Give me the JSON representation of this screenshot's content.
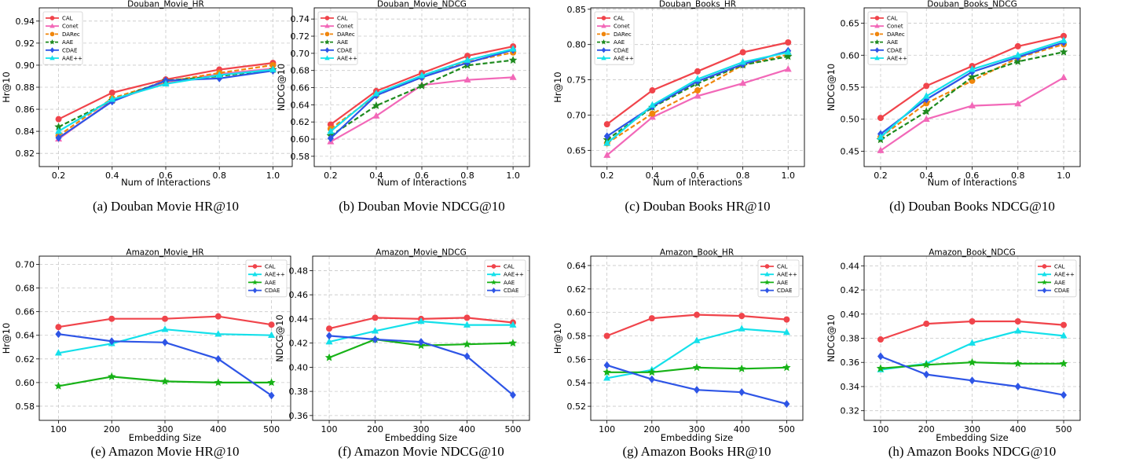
{
  "colors": {
    "CAL": "#f0444b",
    "Conet": "#f268b8",
    "DARec": "#f0860c",
    "AAE": "#1e8a1e",
    "AAE_bottom": "#17b217",
    "CDAE": "#2e55e6",
    "AAE++": "#14e0ea"
  },
  "chart_data": [
    {
      "id": "a",
      "type": "line",
      "title": "Douban_Movie_HR",
      "xlabel": "Num of Interactions",
      "ylabel": "Hr@10",
      "caption": "(a) Douban Movie HR@10",
      "x": [
        0.2,
        0.4,
        0.6,
        0.8,
        1.0
      ],
      "x_ticks": [
        "0.2",
        "0.4",
        "0.6",
        "0.8",
        "1.0"
      ],
      "ylim": [
        0.808,
        0.952
      ],
      "y_ticks": [
        0.82,
        0.84,
        0.86,
        0.88,
        0.9,
        0.92,
        0.94
      ],
      "y_tick_labels": [
        "0.82",
        "0.84",
        "0.86",
        "0.88",
        "0.90",
        "0.92",
        "0.94"
      ],
      "legend": "top-left",
      "grid": true,
      "series": [
        {
          "name": "CAL",
          "values": [
            0.851,
            0.875,
            0.887,
            0.896,
            0.902
          ]
        },
        {
          "name": "Conet",
          "values": [
            0.833,
            0.868,
            0.884,
            0.892,
            0.897
          ]
        },
        {
          "name": "DARec",
          "values": [
            0.836,
            0.87,
            0.885,
            0.893,
            0.9
          ]
        },
        {
          "name": "AAE",
          "values": [
            0.844,
            0.868,
            0.886,
            0.89,
            0.896
          ]
        },
        {
          "name": "CDAE",
          "values": [
            0.834,
            0.867,
            0.886,
            0.888,
            0.895
          ]
        },
        {
          "name": "AAE++",
          "values": [
            0.84,
            0.869,
            0.883,
            0.891,
            0.896
          ]
        }
      ]
    },
    {
      "id": "b",
      "type": "line",
      "title": "Douban_Movie_NDCG",
      "xlabel": "Num of Interactions",
      "ylabel": "NDCG@10",
      "caption": "(b) Douban Movie NDCG@10",
      "x": [
        0.2,
        0.4,
        0.6,
        0.8,
        1.0
      ],
      "x_ticks": [
        "0.2",
        "0.4",
        "0.6",
        "0.8",
        "1.0"
      ],
      "ylim": [
        0.568,
        0.753
      ],
      "y_ticks": [
        0.58,
        0.6,
        0.62,
        0.64,
        0.66,
        0.68,
        0.7,
        0.72,
        0.74
      ],
      "y_tick_labels": [
        "0.58",
        "0.60",
        "0.62",
        "0.64",
        "0.66",
        "0.68",
        "0.70",
        "0.72",
        "0.74"
      ],
      "legend": "top-left",
      "grid": true,
      "series": [
        {
          "name": "CAL",
          "values": [
            0.617,
            0.656,
            0.677,
            0.697,
            0.708
          ]
        },
        {
          "name": "Conet",
          "values": [
            0.597,
            0.627,
            0.663,
            0.669,
            0.672
          ]
        },
        {
          "name": "DARec",
          "values": [
            0.612,
            0.651,
            0.672,
            0.69,
            0.701
          ]
        },
        {
          "name": "AAE",
          "values": [
            0.604,
            0.639,
            0.662,
            0.686,
            0.692
          ]
        },
        {
          "name": "CDAE",
          "values": [
            0.601,
            0.651,
            0.672,
            0.689,
            0.704
          ]
        },
        {
          "name": "AAE++",
          "values": [
            0.609,
            0.653,
            0.674,
            0.692,
            0.705
          ]
        }
      ]
    },
    {
      "id": "c",
      "type": "line",
      "title": "Douban_Books_HR",
      "xlabel": "Num of Interactions",
      "ylabel": "Hr@10",
      "caption": "(c) Douban Books HR@10",
      "x": [
        0.2,
        0.4,
        0.6,
        0.8,
        1.0
      ],
      "x_ticks": [
        "0.2",
        "0.4",
        "0.6",
        "0.8",
        "1.0"
      ],
      "ylim": [
        0.627,
        0.852
      ],
      "y_ticks": [
        0.65,
        0.7,
        0.75,
        0.8,
        0.85
      ],
      "y_tick_labels": [
        "0.65",
        "0.70",
        "0.75",
        "0.80",
        "0.85"
      ],
      "legend": "top-left",
      "grid": true,
      "series": [
        {
          "name": "CAL",
          "values": [
            0.687,
            0.735,
            0.762,
            0.789,
            0.803
          ]
        },
        {
          "name": "Conet",
          "values": [
            0.643,
            0.697,
            0.727,
            0.745,
            0.765
          ]
        },
        {
          "name": "DARec",
          "values": [
            0.66,
            0.702,
            0.735,
            0.771,
            0.786
          ]
        },
        {
          "name": "AAE",
          "values": [
            0.665,
            0.711,
            0.745,
            0.771,
            0.783
          ]
        },
        {
          "name": "CDAE",
          "values": [
            0.67,
            0.712,
            0.748,
            0.772,
            0.791
          ]
        },
        {
          "name": "AAE++",
          "values": [
            0.66,
            0.714,
            0.751,
            0.775,
            0.789
          ]
        }
      ]
    },
    {
      "id": "d",
      "type": "line",
      "title": "Douban_Books_NDCG",
      "xlabel": "Num of Interactions",
      "ylabel": "NDCG@10",
      "caption": "(d) Douban Books NDCG@10",
      "x": [
        0.2,
        0.4,
        0.6,
        0.8,
        1.0
      ],
      "x_ticks": [
        "0.2",
        "0.4",
        "0.6",
        "0.8",
        "1.0"
      ],
      "ylim": [
        0.426,
        0.674
      ],
      "y_ticks": [
        0.45,
        0.5,
        0.55,
        0.6,
        0.65
      ],
      "y_tick_labels": [
        "0.45",
        "0.50",
        "0.55",
        "0.60",
        "0.65"
      ],
      "legend": "top-left",
      "grid": true,
      "series": [
        {
          "name": "CAL",
          "values": [
            0.502,
            0.552,
            0.583,
            0.614,
            0.63
          ]
        },
        {
          "name": "Conet",
          "values": [
            0.451,
            0.5,
            0.521,
            0.524,
            0.565
          ]
        },
        {
          "name": "DARec",
          "values": [
            0.472,
            0.525,
            0.56,
            0.596,
            0.617
          ]
        },
        {
          "name": "AAE",
          "values": [
            0.468,
            0.512,
            0.566,
            0.59,
            0.605
          ]
        },
        {
          "name": "CDAE",
          "values": [
            0.477,
            0.531,
            0.574,
            0.597,
            0.62
          ]
        },
        {
          "name": "AAE++",
          "values": [
            0.472,
            0.536,
            0.578,
            0.6,
            0.623
          ]
        }
      ]
    },
    {
      "id": "e",
      "type": "line",
      "title": "Amazon_Movie_HR",
      "xlabel": "Embedding Size",
      "ylabel": "Hr@10",
      "caption": "(e) Amazon Movie HR@10",
      "x": [
        100,
        200,
        300,
        400,
        500
      ],
      "x_ticks": [
        "100",
        "200",
        "300",
        "400",
        "500"
      ],
      "ylim": [
        0.568,
        0.707
      ],
      "y_ticks": [
        0.58,
        0.6,
        0.62,
        0.64,
        0.66,
        0.68,
        0.7
      ],
      "y_tick_labels": [
        "0.58",
        "0.60",
        "0.62",
        "0.64",
        "0.66",
        "0.68",
        "0.70"
      ],
      "legend": "top-right",
      "grid": true,
      "series": [
        {
          "name": "CAL",
          "values": [
            0.647,
            0.654,
            0.654,
            0.656,
            0.649
          ]
        },
        {
          "name": "AAE++",
          "values": [
            0.625,
            0.633,
            0.645,
            0.641,
            0.64
          ]
        },
        {
          "name": "AAE",
          "values": [
            0.597,
            0.605,
            0.601,
            0.6,
            0.6
          ]
        },
        {
          "name": "CDAE",
          "values": [
            0.641,
            0.635,
            0.634,
            0.62,
            0.589
          ]
        }
      ]
    },
    {
      "id": "f",
      "type": "line",
      "title": "Amazon_Movie_NDCG",
      "xlabel": "Embedding Size",
      "ylabel": "NDCG@10",
      "caption": "(f) Amazon Movie NDCG@10",
      "x": [
        100,
        200,
        300,
        400,
        500
      ],
      "x_ticks": [
        "100",
        "200",
        "300",
        "400",
        "500"
      ],
      "ylim": [
        0.356,
        0.492
      ],
      "y_ticks": [
        0.36,
        0.38,
        0.4,
        0.42,
        0.44,
        0.46,
        0.48
      ],
      "y_tick_labels": [
        "0.36",
        "0.38",
        "0.40",
        "0.42",
        "0.44",
        "0.46",
        "0.48"
      ],
      "legend": "top-right",
      "grid": true,
      "series": [
        {
          "name": "CAL",
          "values": [
            0.432,
            0.441,
            0.44,
            0.441,
            0.437
          ]
        },
        {
          "name": "AAE++",
          "values": [
            0.421,
            0.43,
            0.438,
            0.435,
            0.435
          ]
        },
        {
          "name": "AAE",
          "values": [
            0.408,
            0.423,
            0.418,
            0.419,
            0.42
          ]
        },
        {
          "name": "CDAE",
          "values": [
            0.426,
            0.423,
            0.421,
            0.409,
            0.377
          ]
        }
      ]
    },
    {
      "id": "g",
      "type": "line",
      "title": "Amazon_Book_HR",
      "xlabel": "Embedding Size",
      "ylabel": "Hr@10",
      "caption": "(g) Amazon Books HR@10",
      "x": [
        100,
        200,
        300,
        400,
        500
      ],
      "x_ticks": [
        "100",
        "200",
        "300",
        "400",
        "500"
      ],
      "ylim": [
        0.508,
        0.648
      ],
      "y_ticks": [
        0.52,
        0.54,
        0.56,
        0.58,
        0.6,
        0.62,
        0.64
      ],
      "y_tick_labels": [
        "0.52",
        "0.54",
        "0.56",
        "0.58",
        "0.60",
        "0.62",
        "0.64"
      ],
      "legend": "top-right",
      "grid": true,
      "series": [
        {
          "name": "CAL",
          "values": [
            0.58,
            0.595,
            0.598,
            0.597,
            0.594
          ]
        },
        {
          "name": "AAE++",
          "values": [
            0.544,
            0.551,
            0.576,
            0.586,
            0.583
          ]
        },
        {
          "name": "AAE",
          "values": [
            0.549,
            0.549,
            0.553,
            0.552,
            0.553
          ]
        },
        {
          "name": "CDAE",
          "values": [
            0.555,
            0.543,
            0.534,
            0.532,
            0.522
          ]
        }
      ]
    },
    {
      "id": "h",
      "type": "line",
      "title": "Amazon_Book_NDCG",
      "xlabel": "Embedding Size",
      "ylabel": "NDCG@10",
      "caption": "(h) Amazon Books NDCG@10",
      "x": [
        100,
        200,
        300,
        400,
        500
      ],
      "x_ticks": [
        "100",
        "200",
        "300",
        "400",
        "500"
      ],
      "ylim": [
        0.312,
        0.448
      ],
      "y_ticks": [
        0.32,
        0.34,
        0.36,
        0.38,
        0.4,
        0.42,
        0.44
      ],
      "y_tick_labels": [
        "0.32",
        "0.34",
        "0.36",
        "0.38",
        "0.40",
        "0.42",
        "0.44"
      ],
      "legend": "top-right",
      "grid": true,
      "series": [
        {
          "name": "CAL",
          "values": [
            0.379,
            0.392,
            0.394,
            0.394,
            0.391
          ]
        },
        {
          "name": "AAE++",
          "values": [
            0.354,
            0.359,
            0.376,
            0.386,
            0.382
          ]
        },
        {
          "name": "AAE",
          "values": [
            0.355,
            0.358,
            0.36,
            0.359,
            0.359
          ]
        },
        {
          "name": "CDAE",
          "values": [
            0.365,
            0.35,
            0.345,
            0.34,
            0.333
          ]
        }
      ]
    }
  ]
}
